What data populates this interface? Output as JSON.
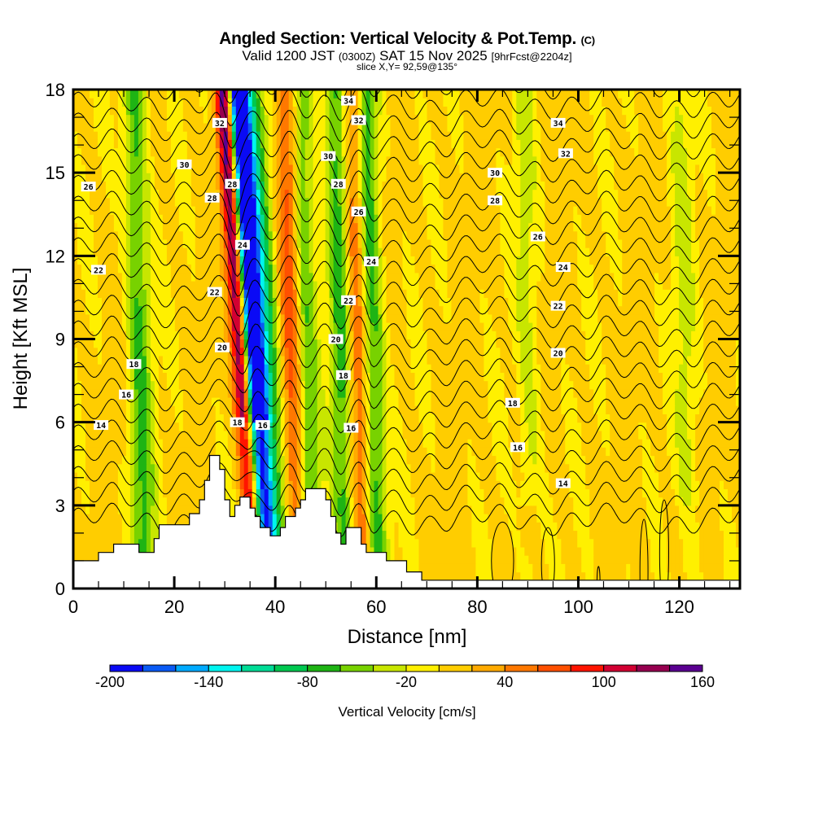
{
  "chart_data": {
    "type": "heatmap",
    "title": "Angled Section: Vertical Velocity & Pot.Temp.",
    "title_unit": "(C)",
    "subtitle": {
      "valid": "Valid 1200 JST",
      "utc": "(0300Z)",
      "date": "SAT 15 Nov 2025",
      "forecast": "[9hrFcst@2204z]"
    },
    "slice_label": "slice X,Y= 92,59@135°",
    "xlabel": "Distance [nm]",
    "ylabel": "Height [Kft MSL]",
    "xlim": [
      0,
      132
    ],
    "ylim": [
      0,
      18
    ],
    "x_ticks": [
      0,
      20,
      40,
      60,
      80,
      100,
      120
    ],
    "x_tick_labels": [
      "0",
      "20",
      "40",
      "60",
      "80",
      "100",
      "120"
    ],
    "y_ticks": [
      0,
      3,
      6,
      9,
      12,
      15,
      18
    ],
    "y_tick_labels": [
      "0",
      "3",
      "6",
      "9",
      "12",
      "15",
      "18"
    ],
    "colorbar": {
      "label": "Vertical Velocity [cm/s]",
      "min": -200,
      "max": 160,
      "step": 20,
      "tick_values": [
        -200,
        -140,
        -80,
        -20,
        40,
        100,
        160
      ],
      "tick_labels": [
        "-200",
        "-140",
        "-80",
        "-20",
        "40",
        "100",
        "160"
      ],
      "colors": [
        "#0a0af5",
        "#0a5af5",
        "#00aaff",
        "#00f5f0",
        "#00dc96",
        "#00c850",
        "#1eb414",
        "#78d200",
        "#c8e600",
        "#fff000",
        "#ffcd00",
        "#ffaa00",
        "#ff7800",
        "#ff5000",
        "#ff1400",
        "#d20032",
        "#960050",
        "#5a0091"
      ]
    },
    "vertical_velocity_features": [
      {
        "x_nm": 13,
        "velocity_cm_s": -70,
        "sign": "down"
      },
      {
        "x_nm": 31,
        "velocity_cm_s": 140,
        "sign": "up"
      },
      {
        "x_nm": 33.5,
        "velocity_cm_s": -190,
        "sign": "down"
      },
      {
        "x_nm": 35,
        "velocity_cm_s": -120,
        "sign": "down"
      },
      {
        "x_nm": 37,
        "velocity_cm_s": -80,
        "sign": "down"
      },
      {
        "x_nm": 43,
        "velocity_cm_s": 70,
        "sign": "up"
      },
      {
        "x_nm": 46,
        "velocity_cm_s": -70,
        "sign": "down"
      },
      {
        "x_nm": 53,
        "velocity_cm_s": -80,
        "sign": "down"
      },
      {
        "x_nm": 56,
        "velocity_cm_s": 70,
        "sign": "up"
      },
      {
        "x_nm": 59,
        "velocity_cm_s": -80,
        "sign": "down"
      },
      {
        "x_nm": 90,
        "velocity_cm_s": -30,
        "sign": "down"
      },
      {
        "x_nm": 121,
        "velocity_cm_s": -30,
        "sign": "down"
      }
    ],
    "terrain_kft": [
      {
        "x": 0,
        "h": 1.0
      },
      {
        "x": 5,
        "h": 1.0
      },
      {
        "x": 5,
        "h": 1.3
      },
      {
        "x": 8,
        "h": 1.3
      },
      {
        "x": 8,
        "h": 1.6
      },
      {
        "x": 13,
        "h": 1.6
      },
      {
        "x": 13,
        "h": 1.3
      },
      {
        "x": 16,
        "h": 1.3
      },
      {
        "x": 16,
        "h": 1.8
      },
      {
        "x": 17,
        "h": 1.8
      },
      {
        "x": 17,
        "h": 2.3
      },
      {
        "x": 23,
        "h": 2.3
      },
      {
        "x": 23,
        "h": 2.7
      },
      {
        "x": 25,
        "h": 2.7
      },
      {
        "x": 25,
        "h": 3.2
      },
      {
        "x": 26,
        "h": 3.2
      },
      {
        "x": 26,
        "h": 3.9
      },
      {
        "x": 27,
        "h": 3.9
      },
      {
        "x": 27,
        "h": 4.8
      },
      {
        "x": 29,
        "h": 4.8
      },
      {
        "x": 29,
        "h": 4.3
      },
      {
        "x": 30,
        "h": 4.3
      },
      {
        "x": 30,
        "h": 3.2
      },
      {
        "x": 31,
        "h": 3.2
      },
      {
        "x": 31,
        "h": 2.6
      },
      {
        "x": 32,
        "h": 2.6
      },
      {
        "x": 32,
        "h": 3.0
      },
      {
        "x": 33,
        "h": 3.0
      },
      {
        "x": 33,
        "h": 3.3
      },
      {
        "x": 35,
        "h": 3.3
      },
      {
        "x": 35,
        "h": 2.9
      },
      {
        "x": 36,
        "h": 2.9
      },
      {
        "x": 36,
        "h": 2.6
      },
      {
        "x": 37,
        "h": 2.6
      },
      {
        "x": 37,
        "h": 2.2
      },
      {
        "x": 39,
        "h": 2.2
      },
      {
        "x": 39,
        "h": 1.9
      },
      {
        "x": 41,
        "h": 1.9
      },
      {
        "x": 41,
        "h": 2.2
      },
      {
        "x": 42,
        "h": 2.2
      },
      {
        "x": 42,
        "h": 2.6
      },
      {
        "x": 44,
        "h": 2.6
      },
      {
        "x": 44,
        "h": 2.9
      },
      {
        "x": 45,
        "h": 2.9
      },
      {
        "x": 45,
        "h": 3.2
      },
      {
        "x": 46,
        "h": 3.2
      },
      {
        "x": 46,
        "h": 3.6
      },
      {
        "x": 50,
        "h": 3.6
      },
      {
        "x": 50,
        "h": 3.2
      },
      {
        "x": 51,
        "h": 3.2
      },
      {
        "x": 51,
        "h": 2.6
      },
      {
        "x": 52,
        "h": 2.6
      },
      {
        "x": 52,
        "h": 2.0
      },
      {
        "x": 53,
        "h": 2.0
      },
      {
        "x": 53,
        "h": 1.6
      },
      {
        "x": 54,
        "h": 1.6
      },
      {
        "x": 54,
        "h": 2.2
      },
      {
        "x": 57,
        "h": 2.2
      },
      {
        "x": 57,
        "h": 1.6
      },
      {
        "x": 58,
        "h": 1.6
      },
      {
        "x": 58,
        "h": 1.3
      },
      {
        "x": 62,
        "h": 1.3
      },
      {
        "x": 62,
        "h": 1.0
      },
      {
        "x": 66,
        "h": 1.0
      },
      {
        "x": 66,
        "h": 0.6
      },
      {
        "x": 69,
        "h": 0.6
      },
      {
        "x": 69,
        "h": 0.3
      },
      {
        "x": 132,
        "h": 0.3
      }
    ],
    "theta_contours": {
      "unit": "C",
      "levels": [
        12,
        13,
        14,
        15,
        16,
        17,
        18,
        19,
        20,
        21,
        22,
        23,
        24,
        25,
        26,
        27,
        28,
        29,
        30,
        31,
        32,
        33,
        34,
        35
      ],
      "labels": [
        {
          "text": "14",
          "x": 5.5,
          "y": 5.9
        },
        {
          "text": "16",
          "x": 10.5,
          "y": 7.0
        },
        {
          "text": "18",
          "x": 12,
          "y": 8.1
        },
        {
          "text": "22",
          "x": 5,
          "y": 11.5
        },
        {
          "text": "26",
          "x": 3,
          "y": 14.5
        },
        {
          "text": "30",
          "x": 22,
          "y": 15.3
        },
        {
          "text": "28",
          "x": 27.5,
          "y": 14.1
        },
        {
          "text": "32",
          "x": 29,
          "y": 16.8
        },
        {
          "text": "28",
          "x": 31.5,
          "y": 14.6
        },
        {
          "text": "24",
          "x": 33.5,
          "y": 12.4
        },
        {
          "text": "22",
          "x": 28,
          "y": 10.7
        },
        {
          "text": "20",
          "x": 29.5,
          "y": 8.7
        },
        {
          "text": "18",
          "x": 32.5,
          "y": 6.0
        },
        {
          "text": "16",
          "x": 37.5,
          "y": 5.9
        },
        {
          "text": "34",
          "x": 54.5,
          "y": 17.6
        },
        {
          "text": "32",
          "x": 56.5,
          "y": 16.9
        },
        {
          "text": "30",
          "x": 50.5,
          "y": 15.6
        },
        {
          "text": "28",
          "x": 52.5,
          "y": 14.6
        },
        {
          "text": "26",
          "x": 56.5,
          "y": 13.6
        },
        {
          "text": "24",
          "x": 59,
          "y": 11.8
        },
        {
          "text": "22",
          "x": 54.5,
          "y": 10.4
        },
        {
          "text": "20",
          "x": 52,
          "y": 9.0
        },
        {
          "text": "18",
          "x": 53.5,
          "y": 7.7
        },
        {
          "text": "16",
          "x": 55,
          "y": 5.8
        },
        {
          "text": "34",
          "x": 96,
          "y": 16.8
        },
        {
          "text": "32",
          "x": 97.5,
          "y": 15.7
        },
        {
          "text": "30",
          "x": 83.5,
          "y": 15.0
        },
        {
          "text": "28",
          "x": 83.5,
          "y": 14.0
        },
        {
          "text": "26",
          "x": 92,
          "y": 12.7
        },
        {
          "text": "24",
          "x": 97,
          "y": 11.6
        },
        {
          "text": "22",
          "x": 96,
          "y": 10.2
        },
        {
          "text": "20",
          "x": 96,
          "y": 8.5
        },
        {
          "text": "18",
          "x": 87,
          "y": 6.7
        },
        {
          "text": "16",
          "x": 88,
          "y": 5.1
        },
        {
          "text": "14",
          "x": 97,
          "y": 3.8
        }
      ]
    }
  }
}
